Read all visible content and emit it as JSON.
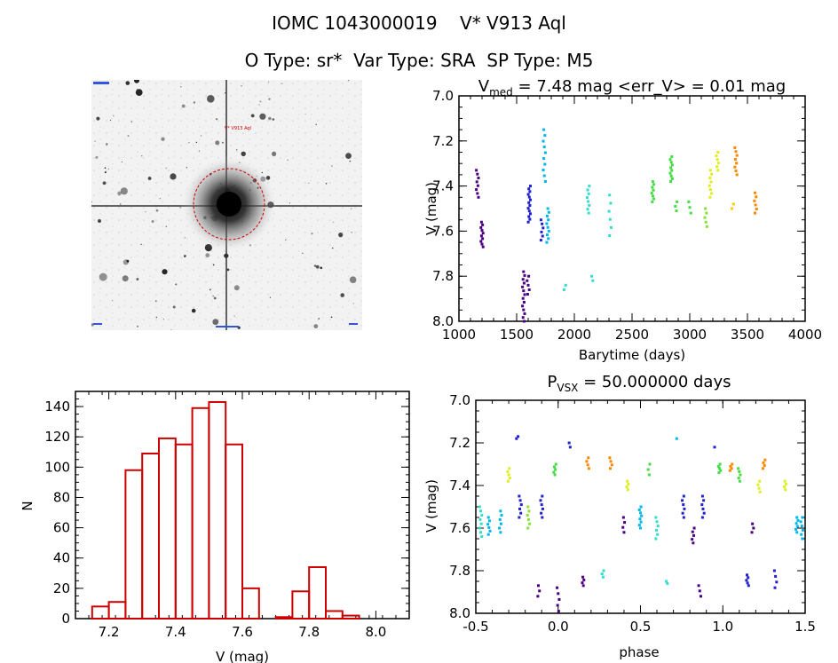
{
  "header": {
    "line1": "IOMC 1043000019    V* V913 Aql",
    "line2": "O Type: sr*  Var Type: SRA  SP Type: M5"
  },
  "image_panel": {
    "target_label": "V* V913 Aql",
    "marker_color": "#cc0000",
    "description_icon": "star-field-thumbnail"
  },
  "colors": {
    "axes": "#000000",
    "hist_bar": "#cc0000",
    "phase_palette": [
      "#4b0082",
      "#2222cc",
      "#00b7eb",
      "#33ddcc",
      "#44dd44",
      "#ddee22",
      "#ff8800"
    ]
  },
  "chart_data": [
    {
      "type": "scatter",
      "panel": "light-curve",
      "title_main": "V",
      "title_sub": "med",
      "title_rest": " = 7.48 mag <err_V> = 0.01 mag",
      "xlabel": "Barytime (days)",
      "ylabel": "V (mag)",
      "xlim": [
        1000,
        4000
      ],
      "ylim": [
        8.0,
        7.0
      ],
      "xticks": [
        1000,
        1500,
        2000,
        2500,
        3000,
        3500,
        4000
      ],
      "yticks": [
        7.0,
        7.2,
        7.4,
        7.6,
        7.8,
        8.0
      ],
      "clusters": [
        {
          "x": 1160,
          "ymin": 7.33,
          "ymax": 7.45,
          "n": 8,
          "color": "#4b0082"
        },
        {
          "x": 1200,
          "ymin": 7.56,
          "ymax": 7.67,
          "n": 10,
          "color": "#4b0082"
        },
        {
          "x": 1560,
          "ymin": 7.78,
          "ymax": 8.0,
          "n": 14,
          "color": "#4b0082"
        },
        {
          "x": 1600,
          "ymin": 7.8,
          "ymax": 7.88,
          "n": 5,
          "color": "#4b0082"
        },
        {
          "x": 1610,
          "ymin": 7.4,
          "ymax": 7.56,
          "n": 14,
          "color": "#2222cc"
        },
        {
          "x": 1720,
          "ymin": 7.55,
          "ymax": 7.64,
          "n": 6,
          "color": "#2222cc"
        },
        {
          "x": 1740,
          "ymin": 7.15,
          "ymax": 7.38,
          "n": 10,
          "color": "#00b7eb"
        },
        {
          "x": 1770,
          "ymin": 7.5,
          "ymax": 7.65,
          "n": 10,
          "color": "#00b7eb"
        },
        {
          "x": 1920,
          "ymin": 7.84,
          "ymax": 7.86,
          "n": 2,
          "color": "#33ddcc"
        },
        {
          "x": 2120,
          "ymin": 7.4,
          "ymax": 7.52,
          "n": 8,
          "color": "#33ddcc"
        },
        {
          "x": 2160,
          "ymin": 7.8,
          "ymax": 7.82,
          "n": 2,
          "color": "#33ddcc"
        },
        {
          "x": 2310,
          "ymin": 7.44,
          "ymax": 7.62,
          "n": 6,
          "color": "#33ddcc"
        },
        {
          "x": 2680,
          "ymin": 7.38,
          "ymax": 7.47,
          "n": 8,
          "color": "#44dd44"
        },
        {
          "x": 2840,
          "ymin": 7.27,
          "ymax": 7.38,
          "n": 10,
          "color": "#44dd44"
        },
        {
          "x": 2880,
          "ymin": 7.47,
          "ymax": 7.51,
          "n": 3,
          "color": "#44dd44"
        },
        {
          "x": 3000,
          "ymin": 7.47,
          "ymax": 7.52,
          "n": 3,
          "color": "#44dd44"
        },
        {
          "x": 3140,
          "ymin": 7.5,
          "ymax": 7.58,
          "n": 5,
          "color": "#88e233"
        },
        {
          "x": 3180,
          "ymin": 7.33,
          "ymax": 7.45,
          "n": 8,
          "color": "#ddee22"
        },
        {
          "x": 3240,
          "ymin": 7.25,
          "ymax": 7.33,
          "n": 6,
          "color": "#ddee22"
        },
        {
          "x": 3370,
          "ymin": 7.48,
          "ymax": 7.5,
          "n": 2,
          "color": "#ffcc00"
        },
        {
          "x": 3400,
          "ymin": 7.23,
          "ymax": 7.35,
          "n": 8,
          "color": "#ff8800"
        },
        {
          "x": 3570,
          "ymin": 7.43,
          "ymax": 7.52,
          "n": 6,
          "color": "#ff8800"
        }
      ]
    },
    {
      "type": "bar",
      "panel": "histogram",
      "xlabel": "V (mag)",
      "ylabel": "N",
      "xlim": [
        7.1,
        8.1
      ],
      "ylim": [
        0,
        150
      ],
      "xticks": [
        7.2,
        7.4,
        7.6,
        7.8,
        8.0
      ],
      "yticks": [
        0,
        20,
        40,
        60,
        80,
        100,
        120,
        140
      ],
      "bin_width": 0.05,
      "bin_left_edges": [
        7.15,
        7.2,
        7.25,
        7.3,
        7.35,
        7.4,
        7.45,
        7.5,
        7.55,
        7.6,
        7.65,
        7.7,
        7.75,
        7.8,
        7.85,
        7.9,
        7.95
      ],
      "values": [
        8,
        11,
        98,
        109,
        119,
        115,
        139,
        143,
        115,
        20,
        0,
        1,
        18,
        34,
        5,
        2,
        0
      ]
    },
    {
      "type": "scatter",
      "panel": "phased-curve",
      "title_main": "P",
      "title_sub": "VSX",
      "title_rest": " = 50.000000 days",
      "xlabel": "phase",
      "ylabel": "V (mag)",
      "xlim": [
        -0.5,
        1.5
      ],
      "ylim": [
        8.0,
        7.0
      ],
      "xticks": [
        -0.5,
        0.0,
        0.5,
        1.0,
        1.5
      ],
      "yticks": [
        7.0,
        7.2,
        7.4,
        7.6,
        7.8,
        8.0
      ],
      "clusters": [
        {
          "x": -0.47,
          "ymin": 7.5,
          "ymax": 7.64,
          "n": 8,
          "color": "#33ddcc"
        },
        {
          "x": -0.42,
          "ymin": 7.55,
          "ymax": 7.63,
          "n": 6,
          "color": "#00b7eb"
        },
        {
          "x": -0.35,
          "ymin": 7.52,
          "ymax": 7.62,
          "n": 6,
          "color": "#00b7eb"
        },
        {
          "x": -0.3,
          "ymin": 7.32,
          "ymax": 7.38,
          "n": 5,
          "color": "#ddee22"
        },
        {
          "x": -0.25,
          "ymin": 7.17,
          "ymax": 7.18,
          "n": 2,
          "color": "#2222cc"
        },
        {
          "x": -0.23,
          "ymin": 7.45,
          "ymax": 7.55,
          "n": 6,
          "color": "#2222cc"
        },
        {
          "x": -0.18,
          "ymin": 7.5,
          "ymax": 7.6,
          "n": 6,
          "color": "#88e233"
        },
        {
          "x": -0.12,
          "ymin": 7.87,
          "ymax": 7.92,
          "n": 3,
          "color": "#4b0082"
        },
        {
          "x": -0.1,
          "ymin": 7.45,
          "ymax": 7.55,
          "n": 6,
          "color": "#2222cc"
        },
        {
          "x": -0.02,
          "ymin": 7.3,
          "ymax": 7.35,
          "n": 5,
          "color": "#44dd44"
        },
        {
          "x": 0.0,
          "ymin": 7.88,
          "ymax": 7.99,
          "n": 5,
          "color": "#4b0082"
        },
        {
          "x": 0.07,
          "ymin": 7.2,
          "ymax": 7.22,
          "n": 2,
          "color": "#2222cc"
        },
        {
          "x": 0.15,
          "ymin": 7.83,
          "ymax": 7.87,
          "n": 4,
          "color": "#4b0082"
        },
        {
          "x": 0.18,
          "ymin": 7.27,
          "ymax": 7.32,
          "n": 4,
          "color": "#ff8800"
        },
        {
          "x": 0.27,
          "ymin": 7.8,
          "ymax": 7.83,
          "n": 3,
          "color": "#33ddcc"
        },
        {
          "x": 0.32,
          "ymin": 7.27,
          "ymax": 7.32,
          "n": 4,
          "color": "#ff8800"
        },
        {
          "x": 0.4,
          "ymin": 7.55,
          "ymax": 7.62,
          "n": 4,
          "color": "#4b0082"
        },
        {
          "x": 0.42,
          "ymin": 7.38,
          "ymax": 7.42,
          "n": 4,
          "color": "#ddee22"
        },
        {
          "x": 0.5,
          "ymin": 7.5,
          "ymax": 7.6,
          "n": 8,
          "color": "#00b7eb"
        },
        {
          "x": 0.55,
          "ymin": 7.3,
          "ymax": 7.35,
          "n": 3,
          "color": "#44dd44"
        },
        {
          "x": 0.6,
          "ymin": 7.55,
          "ymax": 7.65,
          "n": 6,
          "color": "#33ddcc"
        },
        {
          "x": 0.66,
          "ymin": 7.85,
          "ymax": 7.86,
          "n": 2,
          "color": "#33ddcc"
        },
        {
          "x": 0.72,
          "ymin": 7.18,
          "ymax": 7.18,
          "n": 1,
          "color": "#00b7eb"
        },
        {
          "x": 0.76,
          "ymin": 7.45,
          "ymax": 7.55,
          "n": 6,
          "color": "#2222cc"
        },
        {
          "x": 0.82,
          "ymin": 7.6,
          "ymax": 7.67,
          "n": 5,
          "color": "#4b0082"
        },
        {
          "x": 0.86,
          "ymin": 7.87,
          "ymax": 7.92,
          "n": 3,
          "color": "#4b0082"
        },
        {
          "x": 0.88,
          "ymin": 7.45,
          "ymax": 7.55,
          "n": 6,
          "color": "#2222cc"
        },
        {
          "x": 0.95,
          "ymin": 7.22,
          "ymax": 7.22,
          "n": 1,
          "color": "#2222cc"
        },
        {
          "x": 0.98,
          "ymin": 7.3,
          "ymax": 7.34,
          "n": 5,
          "color": "#44dd44"
        },
        {
          "x": 1.05,
          "ymin": 7.3,
          "ymax": 7.33,
          "n": 4,
          "color": "#ff8800"
        },
        {
          "x": 1.1,
          "ymin": 7.32,
          "ymax": 7.38,
          "n": 5,
          "color": "#44dd44"
        },
        {
          "x": 1.15,
          "ymin": 7.82,
          "ymax": 7.87,
          "n": 5,
          "color": "#2222cc"
        },
        {
          "x": 1.18,
          "ymin": 7.58,
          "ymax": 7.62,
          "n": 3,
          "color": "#4b0082"
        },
        {
          "x": 1.22,
          "ymin": 7.38,
          "ymax": 7.43,
          "n": 4,
          "color": "#ddee22"
        },
        {
          "x": 1.25,
          "ymin": 7.28,
          "ymax": 7.32,
          "n": 4,
          "color": "#ff8800"
        },
        {
          "x": 1.32,
          "ymin": 7.8,
          "ymax": 7.88,
          "n": 4,
          "color": "#2222cc"
        },
        {
          "x": 1.38,
          "ymin": 7.38,
          "ymax": 7.42,
          "n": 4,
          "color": "#ddee22"
        },
        {
          "x": 1.45,
          "ymin": 7.55,
          "ymax": 7.62,
          "n": 6,
          "color": "#00b7eb"
        },
        {
          "x": 1.48,
          "ymin": 7.55,
          "ymax": 7.65,
          "n": 6,
          "color": "#00b7eb"
        }
      ]
    }
  ]
}
